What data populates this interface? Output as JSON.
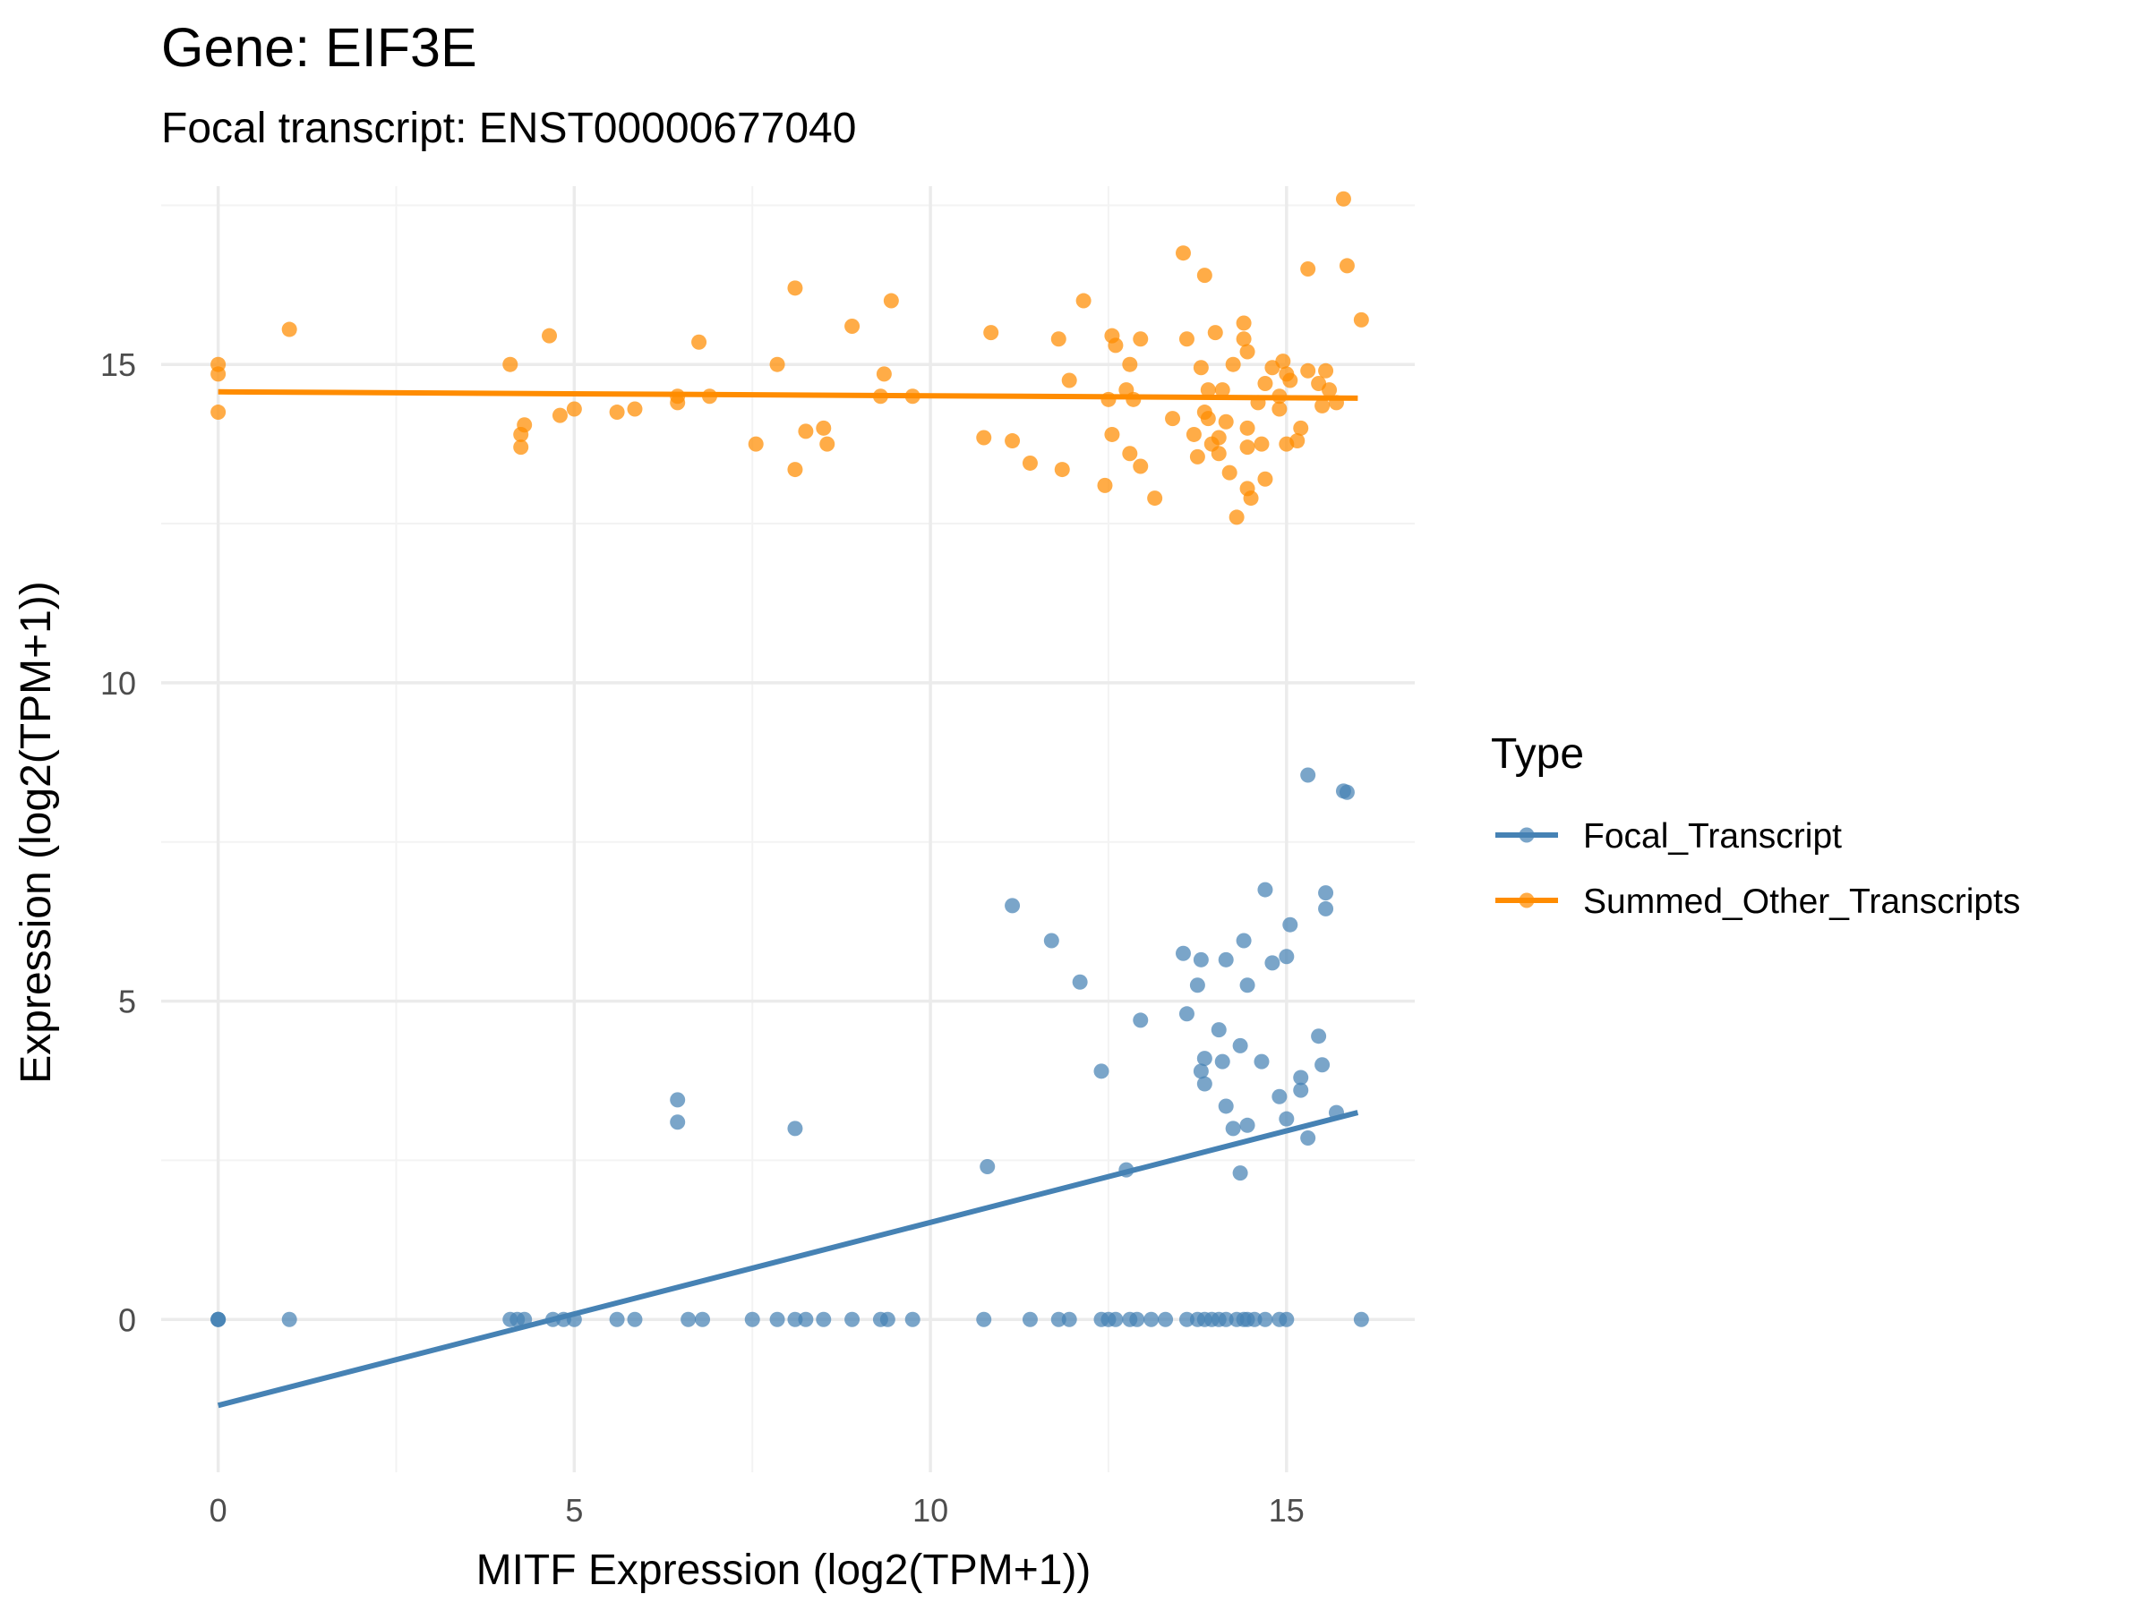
{
  "colors": {
    "focal": "#4682B4",
    "other": "#FF8C00",
    "grid_major": "#EBEBEB",
    "grid_minor": "#F3F3F3",
    "tick_text": "#4D4D4D"
  },
  "chart_data": {
    "type": "scatter",
    "title": "Gene: EIF3E",
    "subtitle": "Focal transcript: ENST00000677040",
    "xlabel": "MITF Expression (log2(TPM+1))",
    "ylabel": "Expression (log2(TPM+1))",
    "xlim": [
      -0.8,
      16.8
    ],
    "ylim": [
      -2.4,
      17.8
    ],
    "x_ticks": [
      0,
      5,
      10,
      15
    ],
    "y_ticks": [
      0,
      5,
      10,
      15
    ],
    "grid": true,
    "legend": {
      "title": "Type",
      "placement": "right"
    },
    "series": [
      {
        "name": "Focal_Transcript",
        "color": "#4682B4",
        "trend_line": {
          "x": [
            0,
            16
          ],
          "y": [
            -1.35,
            3.25
          ]
        },
        "points": [
          [
            0,
            0
          ],
          [
            0,
            0
          ],
          [
            0,
            0
          ],
          [
            1,
            0
          ],
          [
            4.1,
            0
          ],
          [
            4.2,
            0
          ],
          [
            4.3,
            0
          ],
          [
            4.7,
            0
          ],
          [
            4.85,
            0
          ],
          [
            5.0,
            0
          ],
          [
            5.6,
            0
          ],
          [
            5.85,
            0
          ],
          [
            6.6,
            0
          ],
          [
            6.8,
            0
          ],
          [
            7.5,
            0
          ],
          [
            7.85,
            0
          ],
          [
            8.1,
            0
          ],
          [
            8.25,
            0
          ],
          [
            8.5,
            0
          ],
          [
            8.9,
            0
          ],
          [
            9.3,
            0
          ],
          [
            9.4,
            0
          ],
          [
            9.75,
            0
          ],
          [
            10.75,
            0
          ],
          [
            11.4,
            0
          ],
          [
            11.8,
            0
          ],
          [
            11.95,
            0
          ],
          [
            12.4,
            0
          ],
          [
            12.5,
            0
          ],
          [
            12.6,
            0
          ],
          [
            12.8,
            0
          ],
          [
            12.9,
            0
          ],
          [
            13.1,
            0
          ],
          [
            13.3,
            0
          ],
          [
            13.6,
            0
          ],
          [
            13.75,
            0
          ],
          [
            13.85,
            0
          ],
          [
            13.95,
            0
          ],
          [
            14.05,
            0
          ],
          [
            14.15,
            0
          ],
          [
            14.3,
            0
          ],
          [
            14.4,
            0
          ],
          [
            14.45,
            0
          ],
          [
            14.55,
            0
          ],
          [
            14.7,
            0
          ],
          [
            14.9,
            0
          ],
          [
            15.0,
            0
          ],
          [
            16.05,
            0
          ],
          [
            6.45,
            3.45
          ],
          [
            6.45,
            3.1
          ],
          [
            8.1,
            3.0
          ],
          [
            10.8,
            2.4
          ],
          [
            11.15,
            6.5
          ],
          [
            11.7,
            5.95
          ],
          [
            12.1,
            5.3
          ],
          [
            12.4,
            3.9
          ],
          [
            12.75,
            2.35
          ],
          [
            12.95,
            4.7
          ],
          [
            13.55,
            5.75
          ],
          [
            13.6,
            4.8
          ],
          [
            13.75,
            5.25
          ],
          [
            13.8,
            5.65
          ],
          [
            13.8,
            3.9
          ],
          [
            13.85,
            4.1
          ],
          [
            13.85,
            3.7
          ],
          [
            14.05,
            4.55
          ],
          [
            14.1,
            4.05
          ],
          [
            14.15,
            5.65
          ],
          [
            14.15,
            3.35
          ],
          [
            14.25,
            3.0
          ],
          [
            14.35,
            4.3
          ],
          [
            14.4,
            5.95
          ],
          [
            14.45,
            5.25
          ],
          [
            14.45,
            3.05
          ],
          [
            14.35,
            2.3
          ],
          [
            14.65,
            4.05
          ],
          [
            14.7,
            6.75
          ],
          [
            14.8,
            5.6
          ],
          [
            14.9,
            3.5
          ],
          [
            15.0,
            5.7
          ],
          [
            15.0,
            3.15
          ],
          [
            15.05,
            6.2
          ],
          [
            15.2,
            3.8
          ],
          [
            15.2,
            3.6
          ],
          [
            15.3,
            2.85
          ],
          [
            15.3,
            8.55
          ],
          [
            15.45,
            4.45
          ],
          [
            15.5,
            4.0
          ],
          [
            15.55,
            6.7
          ],
          [
            15.55,
            6.45
          ],
          [
            15.7,
            3.25
          ],
          [
            15.8,
            8.3
          ],
          [
            15.85,
            8.28
          ]
        ]
      },
      {
        "name": "Summed_Other_Transcripts",
        "color": "#FF8C00",
        "trend_line": {
          "x": [
            0,
            16
          ],
          "y": [
            14.57,
            14.47
          ]
        },
        "points": [
          [
            0,
            15.0
          ],
          [
            0,
            14.85
          ],
          [
            0,
            14.25
          ],
          [
            1,
            15.55
          ],
          [
            4.1,
            15.0
          ],
          [
            4.25,
            13.9
          ],
          [
            4.25,
            13.7
          ],
          [
            4.3,
            14.05
          ],
          [
            4.65,
            15.45
          ],
          [
            4.8,
            14.2
          ],
          [
            5.0,
            14.3
          ],
          [
            5.6,
            14.25
          ],
          [
            5.85,
            14.3
          ],
          [
            6.45,
            14.5
          ],
          [
            6.45,
            14.4
          ],
          [
            6.75,
            15.35
          ],
          [
            6.9,
            14.5
          ],
          [
            7.55,
            13.75
          ],
          [
            7.85,
            15.0
          ],
          [
            8.1,
            16.2
          ],
          [
            8.1,
            13.35
          ],
          [
            8.25,
            13.95
          ],
          [
            8.5,
            14.0
          ],
          [
            8.55,
            13.75
          ],
          [
            8.9,
            15.6
          ],
          [
            9.3,
            14.5
          ],
          [
            9.35,
            14.85
          ],
          [
            9.45,
            16.0
          ],
          [
            9.75,
            14.5
          ],
          [
            10.75,
            13.85
          ],
          [
            10.85,
            15.5
          ],
          [
            11.15,
            13.8
          ],
          [
            11.4,
            13.45
          ],
          [
            11.8,
            15.4
          ],
          [
            11.85,
            13.35
          ],
          [
            11.95,
            14.75
          ],
          [
            12.15,
            16.0
          ],
          [
            12.45,
            13.1
          ],
          [
            12.5,
            14.45
          ],
          [
            12.55,
            13.9
          ],
          [
            12.55,
            15.45
          ],
          [
            12.6,
            15.3
          ],
          [
            12.75,
            14.6
          ],
          [
            12.8,
            15.0
          ],
          [
            12.8,
            13.6
          ],
          [
            12.85,
            14.45
          ],
          [
            12.95,
            13.4
          ],
          [
            12.95,
            15.4
          ],
          [
            13.15,
            12.9
          ],
          [
            13.4,
            14.15
          ],
          [
            13.55,
            16.75
          ],
          [
            13.6,
            15.4
          ],
          [
            13.7,
            13.9
          ],
          [
            13.75,
            13.55
          ],
          [
            13.8,
            14.95
          ],
          [
            13.85,
            14.25
          ],
          [
            13.85,
            16.4
          ],
          [
            13.9,
            14.6
          ],
          [
            13.9,
            14.15
          ],
          [
            13.95,
            13.75
          ],
          [
            14.0,
            15.5
          ],
          [
            14.05,
            13.85
          ],
          [
            14.05,
            13.6
          ],
          [
            14.1,
            14.6
          ],
          [
            14.15,
            14.1
          ],
          [
            14.2,
            13.3
          ],
          [
            14.25,
            15.0
          ],
          [
            14.3,
            12.6
          ],
          [
            14.4,
            15.65
          ],
          [
            14.4,
            15.4
          ],
          [
            14.45,
            15.2
          ],
          [
            14.45,
            14.0
          ],
          [
            14.45,
            13.7
          ],
          [
            14.45,
            13.05
          ],
          [
            14.5,
            12.9
          ],
          [
            14.6,
            14.4
          ],
          [
            14.65,
            13.75
          ],
          [
            14.7,
            14.7
          ],
          [
            14.7,
            13.2
          ],
          [
            14.8,
            14.95
          ],
          [
            14.9,
            14.5
          ],
          [
            14.9,
            14.3
          ],
          [
            14.95,
            15.05
          ],
          [
            15.0,
            14.85
          ],
          [
            15.0,
            13.75
          ],
          [
            15.05,
            14.75
          ],
          [
            15.15,
            13.8
          ],
          [
            15.2,
            14.0
          ],
          [
            15.3,
            14.9
          ],
          [
            15.3,
            16.5
          ],
          [
            15.45,
            14.7
          ],
          [
            15.5,
            14.35
          ],
          [
            15.55,
            14.9
          ],
          [
            15.6,
            14.6
          ],
          [
            15.7,
            14.4
          ],
          [
            15.8,
            17.6
          ],
          [
            15.85,
            16.55
          ],
          [
            16.05,
            15.7
          ]
        ]
      }
    ]
  }
}
